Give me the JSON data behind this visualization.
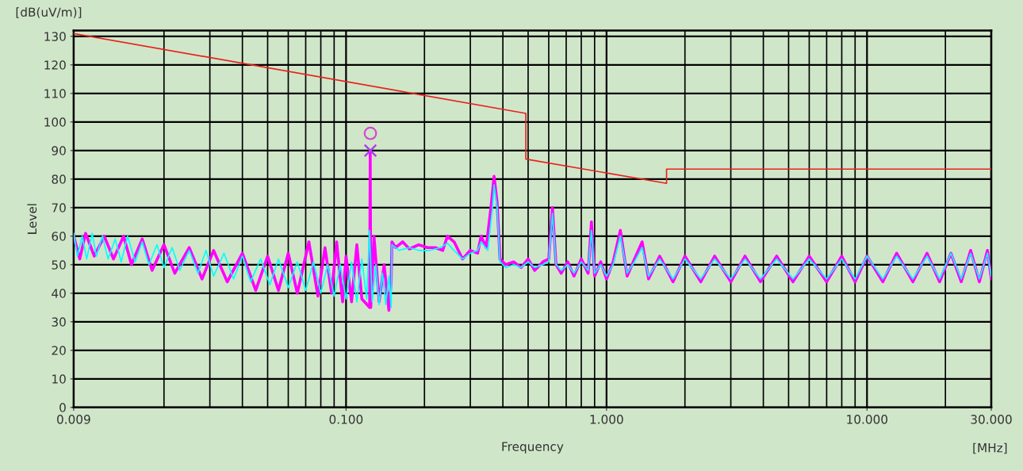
{
  "chart_data": {
    "type": "line",
    "xlabel": "Frequency",
    "ylabel": "Level",
    "annotations": [
      "[dB(uV/m)]",
      "[MHz]"
    ],
    "log": "x",
    "xlim": [
      0.009,
      30
    ],
    "ylim": [
      0,
      132
    ],
    "xticks": [
      {
        "value": 0.009,
        "label": "0.009"
      },
      {
        "value": 0.1,
        "label": "0.100"
      },
      {
        "value": 1,
        "label": "1.000"
      },
      {
        "value": 10,
        "label": "10.000"
      },
      {
        "value": 30,
        "label": "30.000"
      }
    ],
    "yticks": [
      0,
      10,
      20,
      30,
      40,
      50,
      60,
      70,
      80,
      90,
      100,
      110,
      120,
      130
    ],
    "grid": true,
    "legend": false,
    "series": [
      {
        "color": "#ff00ff",
        "x": [
          0.009,
          0.0095,
          0.01,
          0.0108,
          0.0118,
          0.0128,
          0.014,
          0.015,
          0.0165,
          0.018,
          0.02,
          0.022,
          0.025,
          0.028,
          0.031,
          0.035,
          0.04,
          0.045,
          0.05,
          0.055,
          0.06,
          0.065,
          0.072,
          0.078,
          0.083,
          0.088,
          0.092,
          0.097,
          0.1,
          0.105,
          0.11,
          0.115,
          0.1232,
          0.1238,
          0.1244,
          0.128,
          0.134,
          0.14,
          0.146,
          0.149,
          0.15,
          0.155,
          0.165,
          0.175,
          0.19,
          0.205,
          0.22,
          0.235,
          0.245,
          0.26,
          0.28,
          0.3,
          0.32,
          0.33,
          0.345,
          0.36,
          0.37,
          0.38,
          0.39,
          0.41,
          0.44,
          0.47,
          0.5,
          0.53,
          0.57,
          0.6,
          0.62,
          0.64,
          0.67,
          0.71,
          0.75,
          0.8,
          0.85,
          0.875,
          0.9,
          0.95,
          1.0,
          1.06,
          1.13,
          1.2,
          1.28,
          1.37,
          1.45,
          1.6,
          1.8,
          2.0,
          2.3,
          2.6,
          3.0,
          3.4,
          3.9,
          4.5,
          5.2,
          6,
          7,
          8,
          9,
          10,
          11.5,
          13,
          15,
          17,
          19,
          21,
          23,
          25,
          27,
          29,
          30
        ],
        "values": [
          60,
          52,
          61,
          53,
          60,
          52,
          60,
          50,
          59,
          48,
          57,
          47,
          56,
          45,
          55,
          44,
          54,
          41,
          53,
          41,
          54,
          40,
          58,
          39,
          56,
          40,
          58,
          37,
          53,
          37,
          57,
          38,
          35,
          90,
          35,
          60,
          37,
          50,
          34,
          44,
          58,
          56,
          58,
          55.5,
          57,
          56,
          56,
          55,
          60,
          58,
          52,
          55,
          54,
          60,
          56,
          70,
          81,
          72,
          52,
          50,
          51,
          49,
          52,
          48,
          51,
          52,
          70,
          50,
          47,
          51,
          46,
          52,
          47,
          65,
          46,
          51,
          45,
          51,
          62,
          46,
          52,
          58,
          45,
          53,
          44,
          53,
          44,
          53,
          44,
          53,
          44,
          53,
          44,
          53,
          44,
          53,
          44,
          53,
          44,
          54,
          44,
          54,
          44,
          54,
          44,
          55,
          44,
          55,
          45
        ]
      },
      {
        "color": "#00ffff",
        "x": [
          0.009,
          0.0093,
          0.0097,
          0.0101,
          0.0106,
          0.011,
          0.0116,
          0.0122,
          0.013,
          0.0137,
          0.0145,
          0.0155,
          0.0165,
          0.0175,
          0.0188,
          0.02,
          0.0215,
          0.023,
          0.025,
          0.027,
          0.029,
          0.031,
          0.034,
          0.037,
          0.04,
          0.043,
          0.047,
          0.051,
          0.055,
          0.06,
          0.065,
          0.07,
          0.075,
          0.08,
          0.085,
          0.09,
          0.095,
          0.1,
          0.105,
          0.11,
          0.115,
          0.12,
          0.123,
          0.126,
          0.13,
          0.134,
          0.138,
          0.142,
          0.146,
          0.149,
          0.15,
          0.16,
          0.175,
          0.19,
          0.21,
          0.23,
          0.245,
          0.26,
          0.28,
          0.3,
          0.32,
          0.33,
          0.35,
          0.365,
          0.37,
          0.38,
          0.39,
          0.41,
          0.44,
          0.47,
          0.5,
          0.53,
          0.57,
          0.6,
          0.62,
          0.64,
          0.67,
          0.71,
          0.75,
          0.8,
          0.85,
          0.875,
          0.9,
          0.95,
          1.0,
          1.06,
          1.13,
          1.2,
          1.28,
          1.37,
          1.45,
          1.6,
          1.8,
          2.0,
          2.3,
          2.6,
          3.0,
          3.4,
          3.9,
          4.5,
          5.2,
          6,
          7,
          8,
          9,
          10,
          11.5,
          13,
          15,
          17,
          19,
          21,
          23,
          25,
          27,
          29,
          30
        ],
        "values": [
          61,
          53,
          60,
          52,
          61,
          53,
          60,
          52,
          59,
          51,
          60,
          51,
          58,
          50,
          57,
          49,
          56,
          48,
          55,
          47,
          55,
          46,
          54,
          45,
          53,
          44,
          52,
          43,
          52,
          42,
          51,
          41,
          51,
          40,
          50,
          39,
          50,
          38,
          51,
          37,
          52,
          38,
          62,
          37,
          50,
          36,
          47,
          36,
          46,
          35,
          57,
          55,
          56,
          55,
          55,
          56,
          57.5,
          55,
          52,
          54,
          55,
          58,
          55,
          70,
          78,
          70,
          51,
          49,
          50,
          49,
          51,
          49,
          50,
          51,
          68,
          50,
          48,
          50,
          47,
          51,
          48,
          62,
          47,
          50,
          46,
          50,
          60,
          47,
          51,
          56,
          46,
          52,
          45,
          52,
          45,
          52,
          45,
          52,
          45,
          52,
          45,
          52,
          45,
          52,
          45,
          53,
          45,
          53,
          45,
          53,
          45,
          54,
          45,
          54,
          45,
          54,
          46
        ]
      },
      {
        "color": "#e8231e",
        "x": [
          0.009,
          0.49,
          0.49,
          1.7,
          1.7,
          30
        ],
        "values": [
          131,
          103,
          87,
          78.5,
          83.5,
          83.5
        ]
      },
      {
        "type": "scatter",
        "marker": "circle",
        "color": "#d04ad0",
        "x": [
          0.124
        ],
        "values": [
          96
        ]
      },
      {
        "type": "scatter",
        "marker": "cross",
        "color": "#b040e8",
        "x": [
          0.124
        ],
        "values": [
          90
        ]
      }
    ]
  }
}
